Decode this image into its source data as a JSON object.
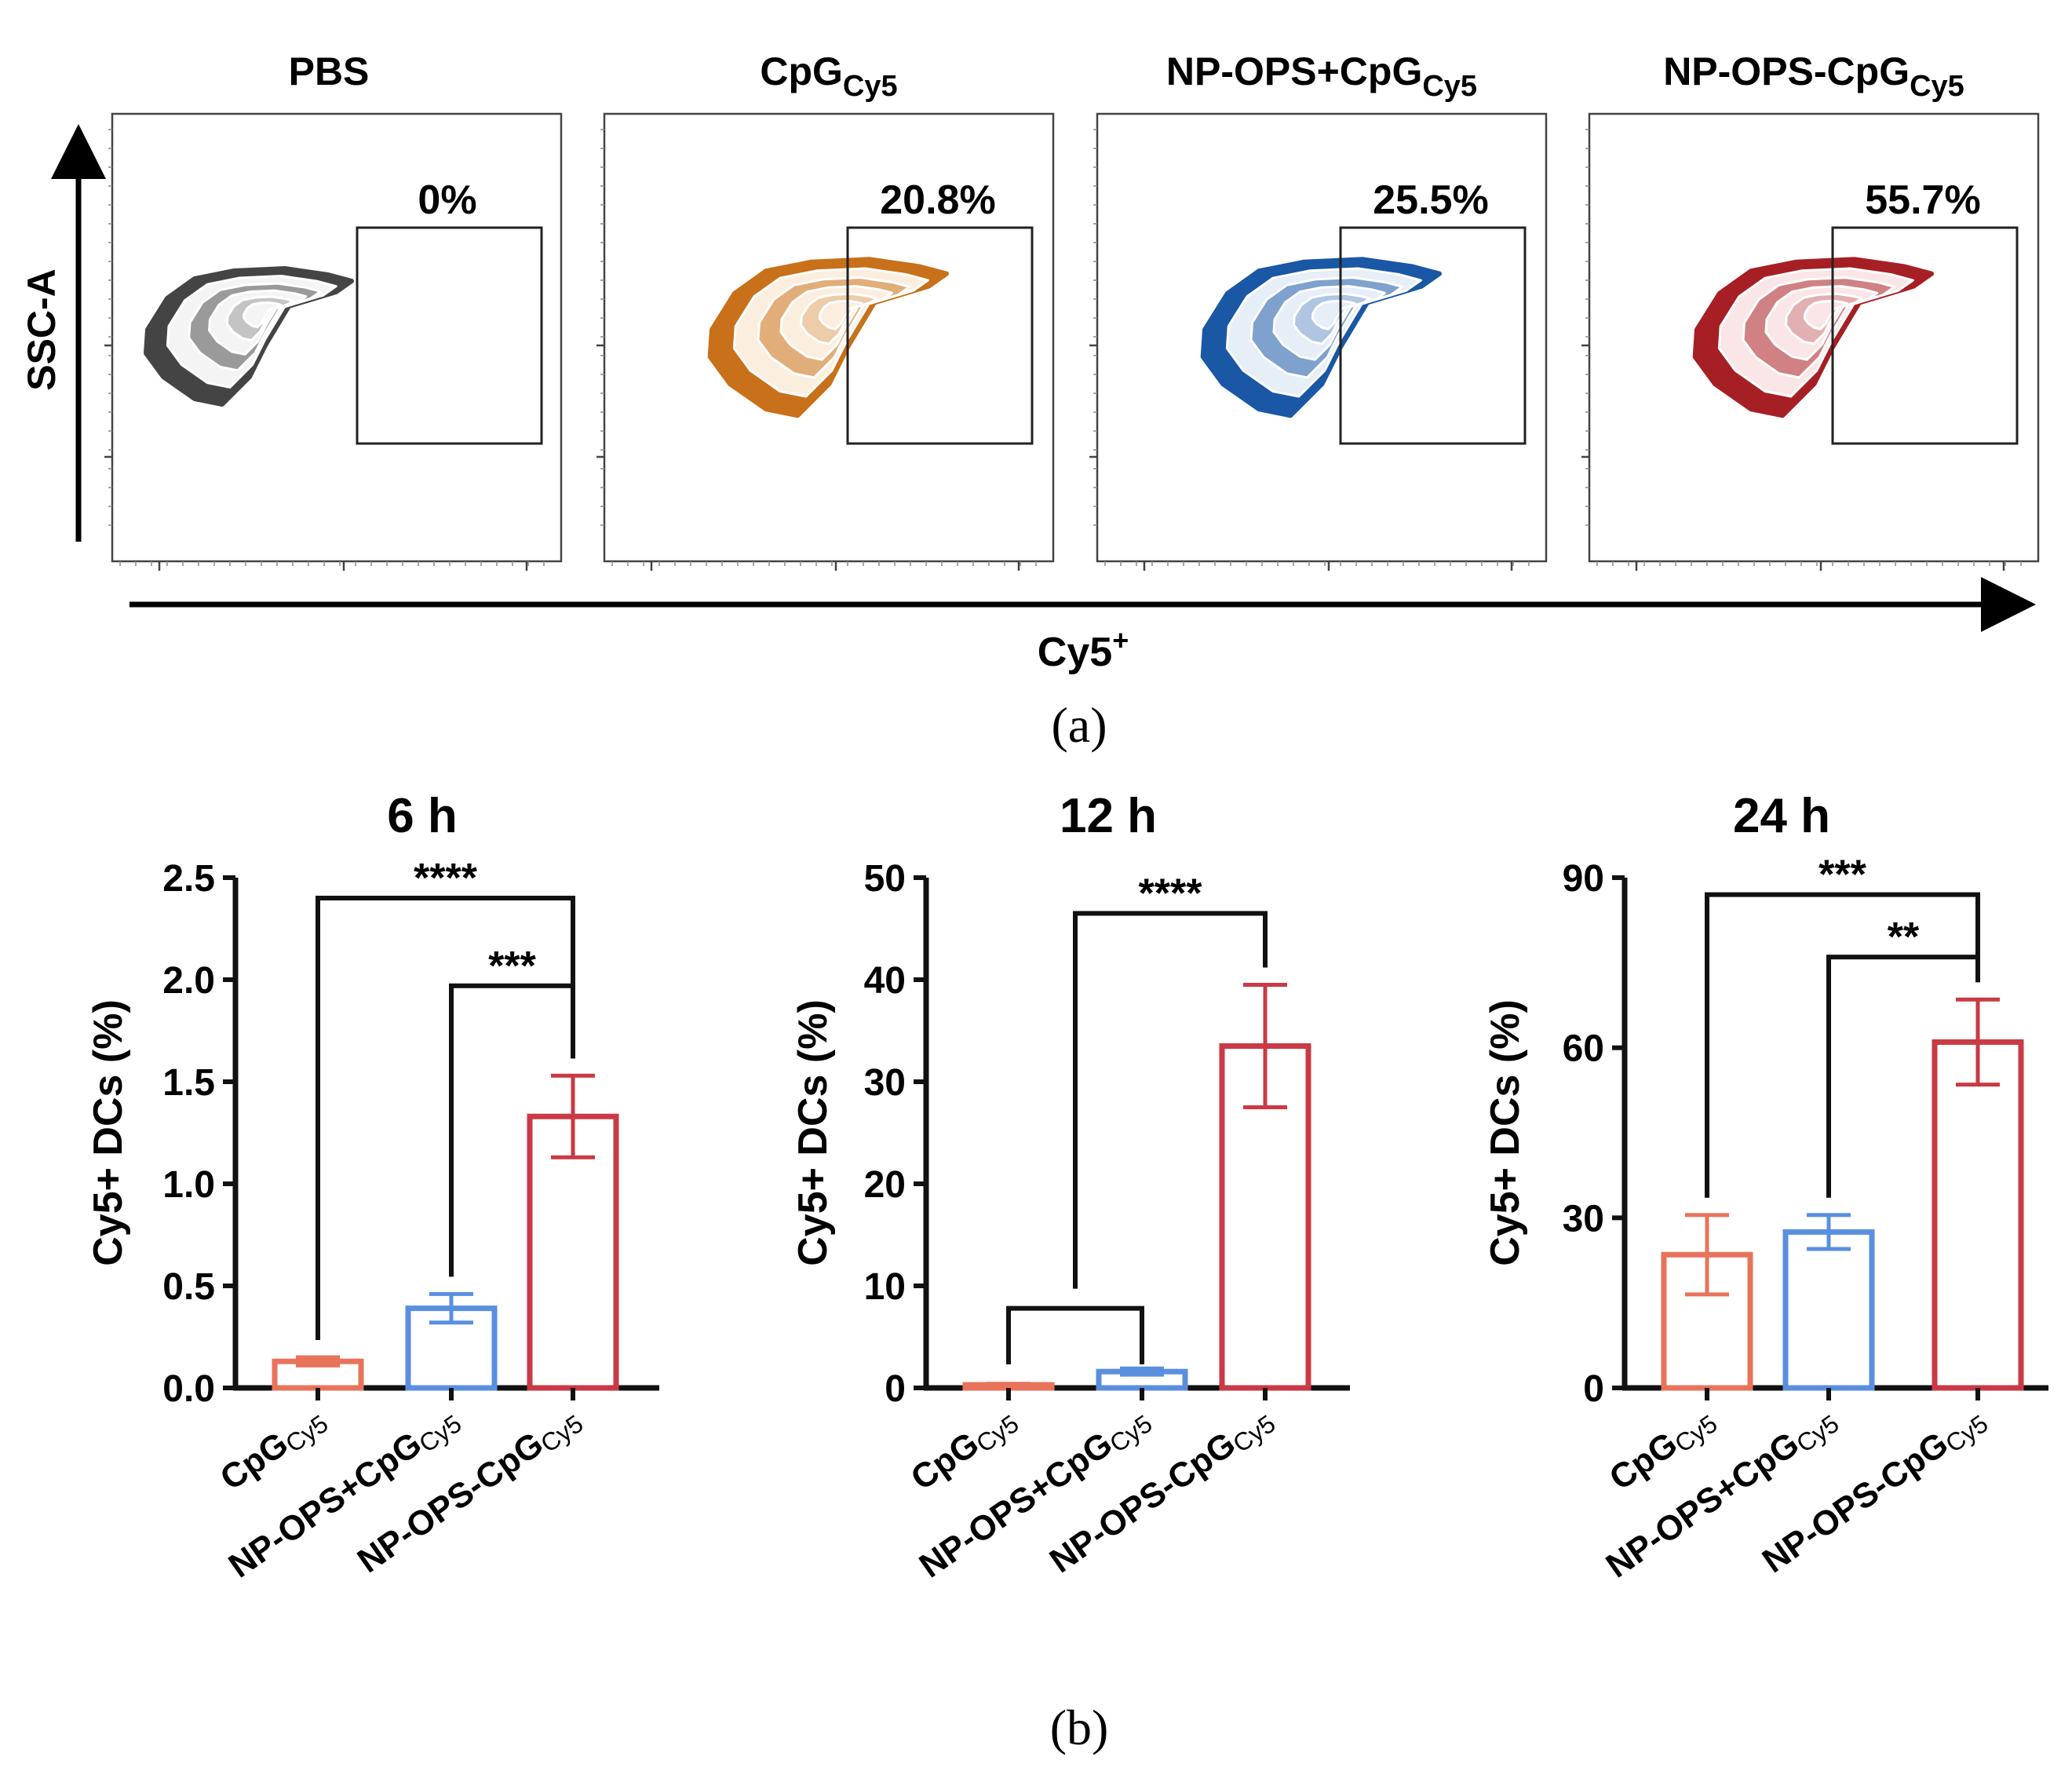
{
  "panel_a": {
    "label": "(a)",
    "x_axis_label": "Cy5",
    "x_axis_label_sup": "+",
    "y_axis_label": "SSC-A",
    "plots": [
      {
        "title": "PBS",
        "title_sub": "",
        "gate_percent": "0%",
        "color": "#444444",
        "light": "#f4f4f4"
      },
      {
        "title": "CpG",
        "title_sub": "Cy5",
        "gate_percent": "20.8%",
        "color": "#c8701a",
        "light": "#fbeede"
      },
      {
        "title": "NP-OPS+CpG",
        "title_sub": "Cy5",
        "gate_percent": "25.5%",
        "color": "#1a57a5",
        "light": "#e6eef8"
      },
      {
        "title": "NP-OPS-CpG",
        "title_sub": "Cy5",
        "gate_percent": "55.7%",
        "color": "#a61f24",
        "light": "#fae6e6"
      }
    ]
  },
  "panel_b": {
    "label": "(b)"
  },
  "chart_data": [
    {
      "type": "bar",
      "title": "6 h",
      "ylabel": "Cy5+ DCs (%)",
      "ylim": [
        0,
        2.5
      ],
      "yticks": [
        "0.0",
        "0.5",
        "1.0",
        "1.5",
        "2.0",
        "2.5"
      ],
      "categories": [
        {
          "main": "CpG",
          "sub": "Cy5"
        },
        {
          "main": "NP-OPS+CpG",
          "sub": "Cy5"
        },
        {
          "main": "NP-OPS-CpG",
          "sub": "Cy5"
        }
      ],
      "values": [
        0.13,
        0.39,
        1.33
      ],
      "errors": [
        0.02,
        0.07,
        0.2
      ],
      "colors": [
        "#e8735a",
        "#5a8fe0",
        "#c93a45"
      ],
      "significance": [
        {
          "from": 0,
          "to": 2,
          "label": "****",
          "level": 2.4
        },
        {
          "from": 1,
          "to": 2,
          "label": "***",
          "level": 1.97
        }
      ]
    },
    {
      "type": "bar",
      "title": "12 h",
      "ylabel": "Cy5+ DCs (%)",
      "ylim": [
        0,
        50
      ],
      "yticks": [
        "0",
        "10",
        "20",
        "30",
        "40",
        "50"
      ],
      "categories": [
        {
          "main": "CpG",
          "sub": "Cy5"
        },
        {
          "main": "NP-OPS+CpG",
          "sub": "Cy5"
        },
        {
          "main": "NP-OPS-CpG",
          "sub": "Cy5"
        }
      ],
      "values": [
        0.3,
        1.6,
        33.5
      ],
      "errors": [
        0.1,
        0.3,
        6.0
      ],
      "colors": [
        "#e8735a",
        "#5a8fe0",
        "#c93a45"
      ],
      "significance_group": {
        "from": 0,
        "to": 1,
        "level": 7.8,
        "target": 2,
        "top": 46.5,
        "label": "****"
      }
    },
    {
      "type": "bar",
      "title": "24 h",
      "ylabel": "Cy5+ DCs (%)",
      "ylim": [
        0,
        90
      ],
      "yticks": [
        "0",
        "30",
        "60",
        "90"
      ],
      "categories": [
        {
          "main": "CpG",
          "sub": "Cy5"
        },
        {
          "main": "NP-OPS+CpG",
          "sub": "Cy5"
        },
        {
          "main": "NP-OPS-CpG",
          "sub": "Cy5"
        }
      ],
      "values": [
        23.5,
        27.5,
        61.0
      ],
      "errors": [
        7.0,
        3.0,
        7.5
      ],
      "colors": [
        "#e8735a",
        "#5a8fe0",
        "#c93a45"
      ],
      "significance": [
        {
          "from": 0,
          "to": 2,
          "label": "***",
          "level": 87
        },
        {
          "from": 1,
          "to": 2,
          "label": "**",
          "level": 76
        }
      ]
    }
  ]
}
